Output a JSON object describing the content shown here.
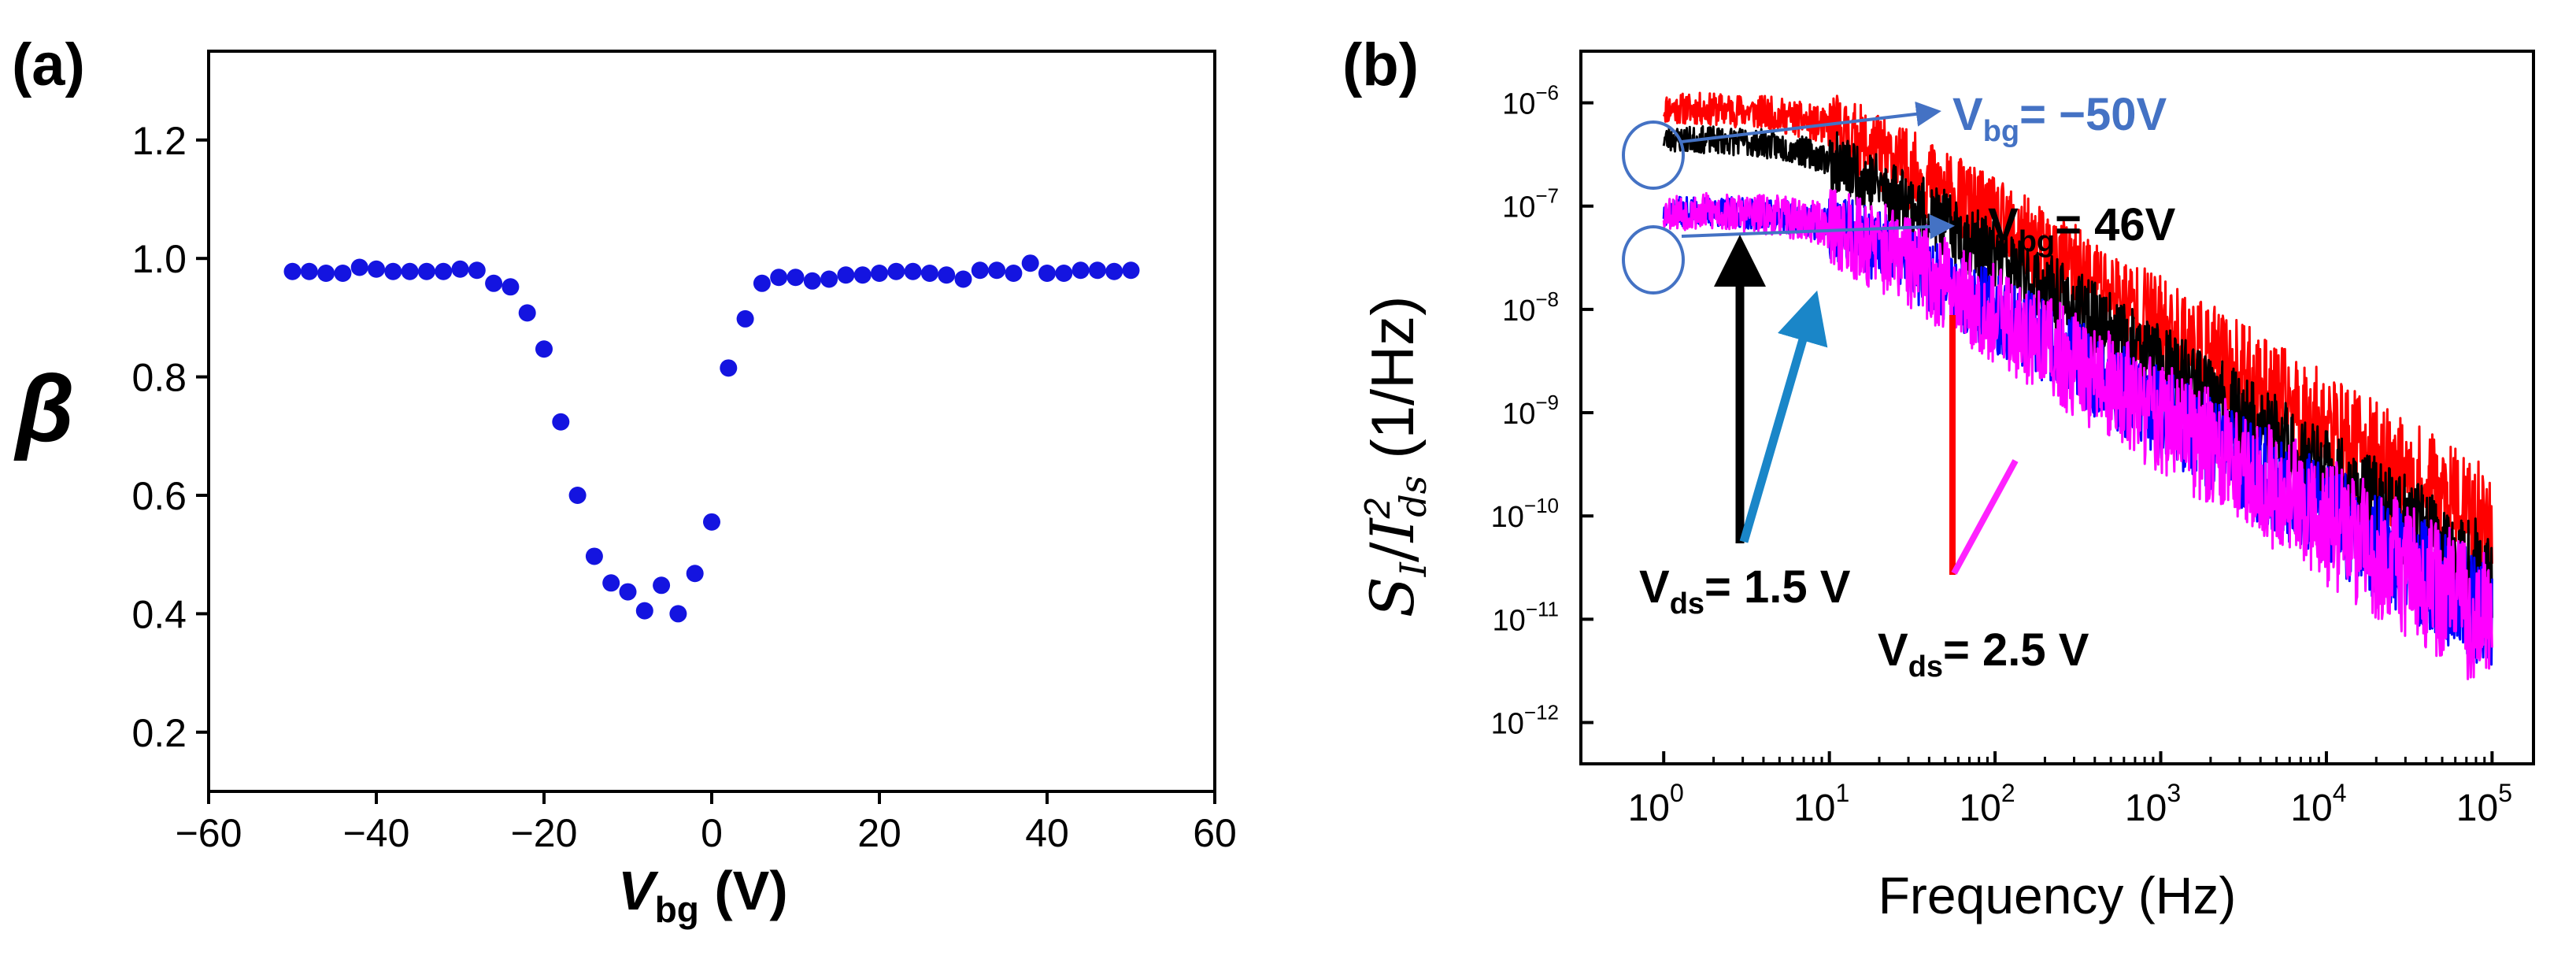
{
  "chart_data": [
    {
      "panel_label": "(a)",
      "type": "scatter",
      "title": "",
      "xlabel": {
        "main": "V",
        "sub": "bg",
        "unit": " (V)"
      },
      "ylabel": "β",
      "xlim": [
        -60,
        60
      ],
      "ylim": [
        0.1,
        1.35
      ],
      "xticks": [
        -60,
        -40,
        -20,
        0,
        20,
        40,
        60
      ],
      "yticks": [
        0.2,
        0.4,
        0.6,
        0.8,
        1.0,
        1.2
      ],
      "ytick_labels": [
        "0.2",
        "0.4",
        "0.6",
        "0.8",
        "1.0",
        "1.2"
      ],
      "grid": false,
      "marker_color": "#1414e0",
      "series": [
        {
          "name": "beta",
          "x": [
            -50,
            -48,
            -46,
            -44,
            -42,
            -40,
            -38,
            -36,
            -34,
            -32,
            -30,
            -28,
            -26,
            -24,
            -22,
            -20,
            -18,
            -16,
            -14,
            -12,
            -10,
            -8,
            -6,
            -4,
            -2,
            0,
            2,
            4,
            6,
            8,
            10,
            12,
            14,
            16,
            18,
            20,
            22,
            24,
            26,
            28,
            30,
            32,
            34,
            36,
            38,
            40,
            42,
            44,
            46,
            48,
            50
          ],
          "y": [
            0.978,
            0.978,
            0.975,
            0.975,
            0.985,
            0.982,
            0.978,
            0.978,
            0.978,
            0.978,
            0.982,
            0.98,
            0.958,
            0.952,
            0.908,
            0.847,
            0.724,
            0.6,
            0.497,
            0.452,
            0.437,
            0.405,
            0.448,
            0.4,
            0.468,
            0.555,
            0.815,
            0.898,
            0.958,
            0.968,
            0.968,
            0.962,
            0.965,
            0.972,
            0.972,
            0.975,
            0.978,
            0.978,
            0.975,
            0.972,
            0.965,
            0.98,
            0.98,
            0.975,
            0.992,
            0.975,
            0.975,
            0.98,
            0.98,
            0.978,
            0.98
          ]
        }
      ]
    },
    {
      "panel_label": "(b)",
      "type": "line",
      "title": "",
      "xlabel": "Frequency (Hz)",
      "ylabel": {
        "s": "S",
        "s_sub": "I",
        "slash": "/",
        "i": "I",
        "i_sup": "2",
        "i_sub": "ds",
        "unit": " (1/Hz)"
      },
      "xscale": "log",
      "yscale": "log",
      "xlim_exp": [
        -0.5,
        5.25
      ],
      "ylim_exp": [
        -12.4,
        -5.5
      ],
      "xtick_exponents": [
        "0",
        "1",
        "2",
        "3",
        "4",
        "5"
      ],
      "ytick_exponents": [
        "-6",
        "-7",
        "-8",
        "-9",
        "-10",
        "-11",
        "-12"
      ],
      "tick_base": "10",
      "grid": false,
      "series": [
        {
          "name": "Vds = 2.5 V, Vbg = -50V",
          "color": "#ff0000",
          "log_y_at_1Hz": -6.05,
          "low_f_knee": 8,
          "slope": -1.0,
          "noise": 0.3,
          "seed": 11
        },
        {
          "name": "Vds = 1.5 V, Vbg = -50V",
          "color": "#000000",
          "log_y_at_1Hz": -6.35,
          "low_f_knee": 8,
          "slope": -1.04,
          "noise": 0.25,
          "seed": 23
        },
        {
          "name": "Vds = 1.5 V, Vbg = 46V",
          "color": "#0000ff",
          "log_y_at_1Hz": -7.05,
          "low_f_knee": 10,
          "slope": -0.98,
          "noise": 0.28,
          "seed": 37
        },
        {
          "name": "Vds = 2.5 V, Vbg = 46V",
          "color": "#ff00ff",
          "log_y_at_1Hz": -7.05,
          "low_f_knee": 10,
          "slope": -1.0,
          "noise": 0.35,
          "seed": 53
        }
      ],
      "annotations": {
        "vbg_top": {
          "prefix": "V",
          "sub": "bg",
          "text": "= −50V",
          "color": "#4472c4"
        },
        "vbg_bottom": {
          "prefix": "V",
          "sub": "bg",
          "text": "= 46V",
          "color": "#000000"
        },
        "vds_low": {
          "prefix": "V",
          "sub": "ds",
          "text": "= 1.5 V",
          "color": "#000000"
        },
        "vds_high": {
          "prefix": "V",
          "sub": "ds",
          "text": "= 2.5 V",
          "color": "#000000"
        },
        "arrow_blue_color": "#4472c4",
        "arrow_black_color": "#000000",
        "arrow_teal_color": "#1a86c8",
        "arrow_red_color": "#ff0000",
        "arrow_magenta_color": "#ff22ff"
      }
    }
  ]
}
